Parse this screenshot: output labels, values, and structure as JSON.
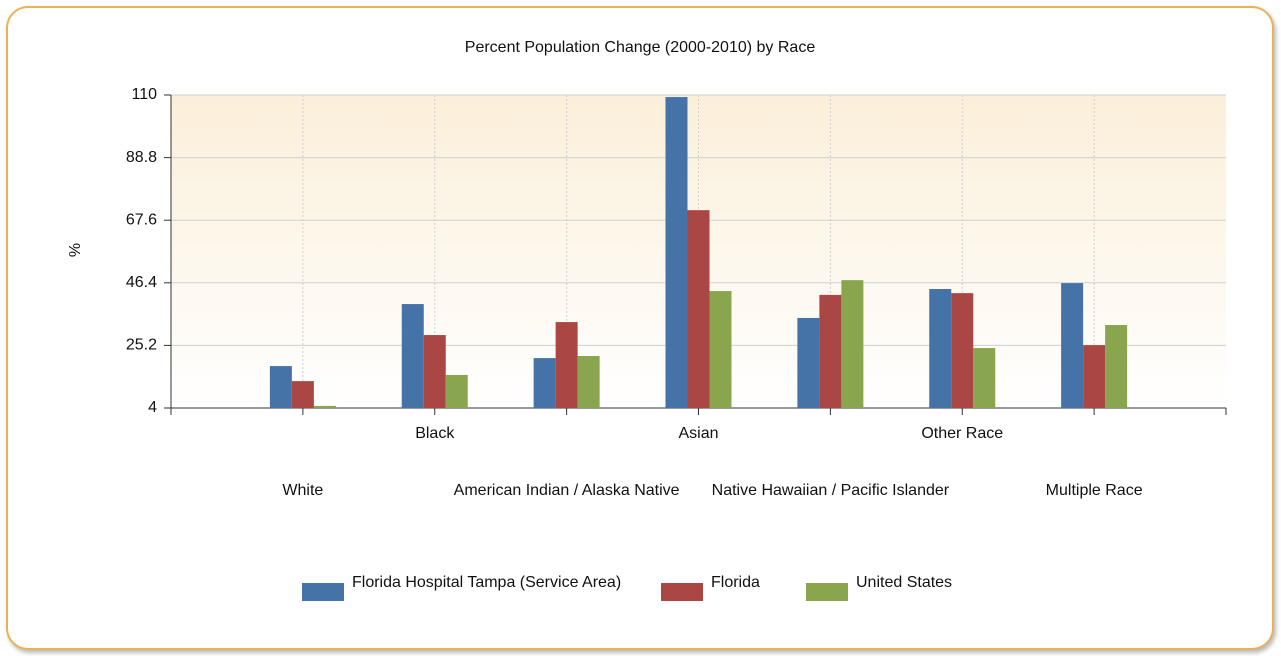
{
  "chart_data": {
    "type": "bar",
    "title": "Percent Population Change (2000-2010) by Race",
    "y_label": "%",
    "categories": [
      "White",
      "Black",
      "American Indian / Alaska Native",
      "Asian",
      "Native Hawaiian / Pacific Islander",
      "Other Race",
      "Multiple Race"
    ],
    "series": [
      {
        "name": "Florida Hospital Tampa (Service Area)",
        "color": "#4572a7",
        "values": [
          18.2,
          39.2,
          20.9,
          109.3,
          34.5,
          44.3,
          46.3
        ]
      },
      {
        "name": "Florida",
        "color": "#aa4643",
        "values": [
          13.1,
          28.7,
          33.1,
          71.0,
          42.3,
          42.9,
          25.3
        ]
      },
      {
        "name": "United States",
        "color": "#89a54e",
        "values": [
          4.7,
          15.2,
          21.6,
          43.6,
          47.3,
          24.3,
          32.1
        ]
      }
    ],
    "ylim": [
      4,
      110
    ],
    "yticks": [
      4,
      25.2,
      46.4,
      67.6,
      88.8,
      110
    ],
    "grid": true
  }
}
